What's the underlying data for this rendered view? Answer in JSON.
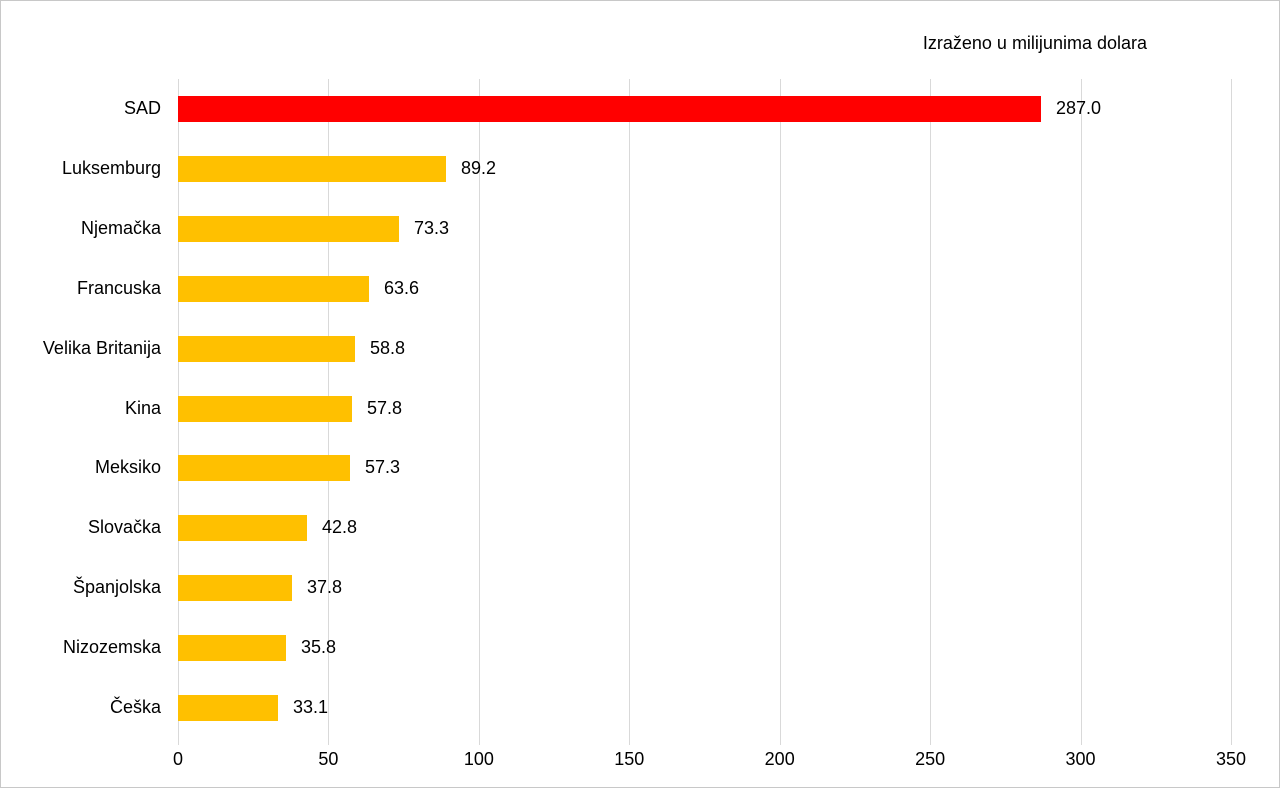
{
  "title": "Izraženo u milijunima dolara",
  "colors": {
    "bar_default": "#FFC000",
    "bar_highlight": "#FF0000",
    "gridline": "#D9D9D9",
    "text": "#000000",
    "canvas_border": "#C8C8C8",
    "background": "#FFFFFF"
  },
  "chart_data": {
    "type": "bar",
    "orientation": "horizontal",
    "title": "Izraženo u milijunima dolara",
    "categories": [
      "SAD",
      "Luksemburg",
      "Njemačka",
      "Francuska",
      "Velika Britanija",
      "Kina",
      "Meksiko",
      "Slovačka",
      "Španjolska",
      "Nizozemska",
      "Češka"
    ],
    "values": [
      287.0,
      89.2,
      73.3,
      63.6,
      58.8,
      57.8,
      57.3,
      42.8,
      37.8,
      35.8,
      33.1
    ],
    "value_labels": [
      "287.0",
      "89.2",
      "73.3",
      "63.6",
      "58.8",
      "57.8",
      "57.3",
      "42.8",
      "37.8",
      "35.8",
      "33.1"
    ],
    "bar_colors": [
      "#FF0000",
      "#FFC000",
      "#FFC000",
      "#FFC000",
      "#FFC000",
      "#FFC000",
      "#FFC000",
      "#FFC000",
      "#FFC000",
      "#FFC000",
      "#FFC000"
    ],
    "xlabel": "",
    "ylabel": "",
    "xlim": [
      0,
      350
    ],
    "xticks": [
      0,
      50,
      100,
      150,
      200,
      250,
      300,
      350
    ],
    "grid": true,
    "legend": false,
    "data_labels": true
  }
}
